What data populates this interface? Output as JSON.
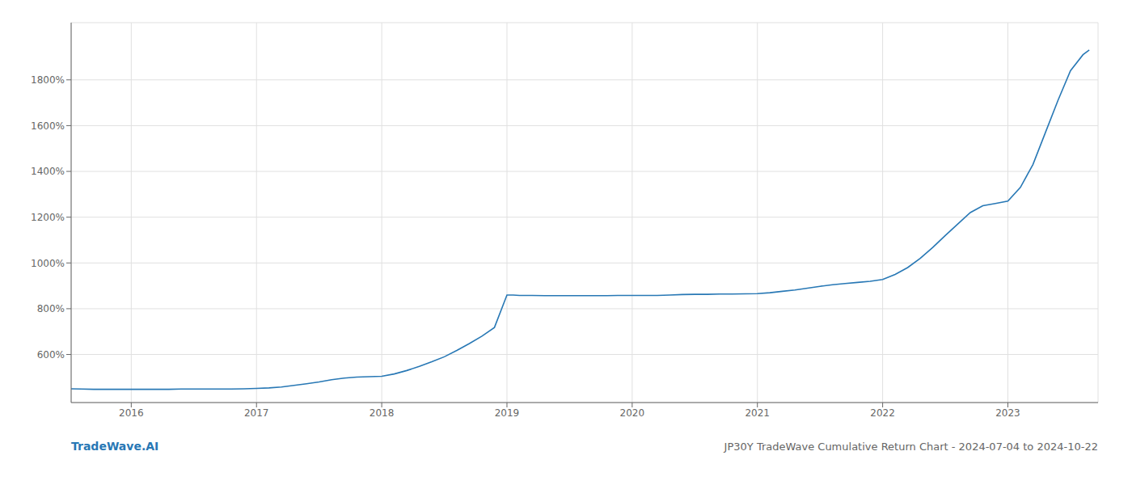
{
  "chart_data": {
    "type": "line",
    "title": "JP30Y TradeWave Cumulative Return Chart - 2024-07-04 to 2024-10-22",
    "annotations": [
      "TradeWave.AI"
    ],
    "color": "#2878b5",
    "grid": true,
    "x": [
      2015.52,
      2015.6,
      2015.7,
      2015.8,
      2015.9,
      2016.0,
      2016.1,
      2016.2,
      2016.3,
      2016.4,
      2016.5,
      2016.6,
      2016.7,
      2016.8,
      2016.9,
      2017.0,
      2017.1,
      2017.2,
      2017.3,
      2017.4,
      2017.5,
      2017.6,
      2017.7,
      2017.8,
      2017.9,
      2018.0,
      2018.1,
      2018.2,
      2018.3,
      2018.4,
      2018.5,
      2018.6,
      2018.7,
      2018.8,
      2018.9,
      2019.0,
      2019.05,
      2019.1,
      2019.2,
      2019.3,
      2019.4,
      2019.5,
      2019.6,
      2019.7,
      2019.8,
      2019.9,
      2020.0,
      2020.1,
      2020.2,
      2020.3,
      2020.4,
      2020.5,
      2020.6,
      2020.7,
      2020.8,
      2020.9,
      2021.0,
      2021.1,
      2021.2,
      2021.3,
      2021.4,
      2021.5,
      2021.6,
      2021.7,
      2021.8,
      2021.9,
      2022.0,
      2022.1,
      2022.2,
      2022.3,
      2022.4,
      2022.5,
      2022.6,
      2022.7,
      2022.8,
      2022.9,
      2023.0,
      2023.1,
      2023.2,
      2023.3,
      2023.4,
      2023.5,
      2023.6,
      2023.65
    ],
    "values": [
      450,
      449,
      448,
      448,
      448,
      448,
      448,
      448,
      448,
      449,
      449,
      449,
      449,
      449,
      450,
      452,
      454,
      458,
      465,
      472,
      480,
      490,
      497,
      501,
      503,
      505,
      515,
      530,
      548,
      568,
      590,
      618,
      648,
      680,
      718,
      860,
      860,
      858,
      858,
      857,
      857,
      857,
      857,
      857,
      857,
      858,
      858,
      858,
      858,
      860,
      862,
      863,
      863,
      864,
      864,
      865,
      866,
      870,
      876,
      882,
      890,
      898,
      905,
      910,
      915,
      920,
      928,
      950,
      980,
      1020,
      1068,
      1120,
      1170,
      1220,
      1250,
      1260,
      1270,
      1330,
      1430,
      1570,
      1710,
      1840,
      1910,
      1930
    ],
    "xlim": [
      2015.52,
      2023.72
    ],
    "xticks": [
      2016,
      2017,
      2018,
      2019,
      2020,
      2021,
      2022,
      2023
    ],
    "ylim": [
      390,
      2050
    ],
    "yticks": [
      {
        "value": 600,
        "label": "600%"
      },
      {
        "value": 800,
        "label": "800%"
      },
      {
        "value": 1000,
        "label": "1000%"
      },
      {
        "value": 1200,
        "label": "1200%"
      },
      {
        "value": 1400,
        "label": "1400%"
      },
      {
        "value": 1600,
        "label": "1600%"
      },
      {
        "value": 1800,
        "label": "1800%"
      }
    ]
  }
}
